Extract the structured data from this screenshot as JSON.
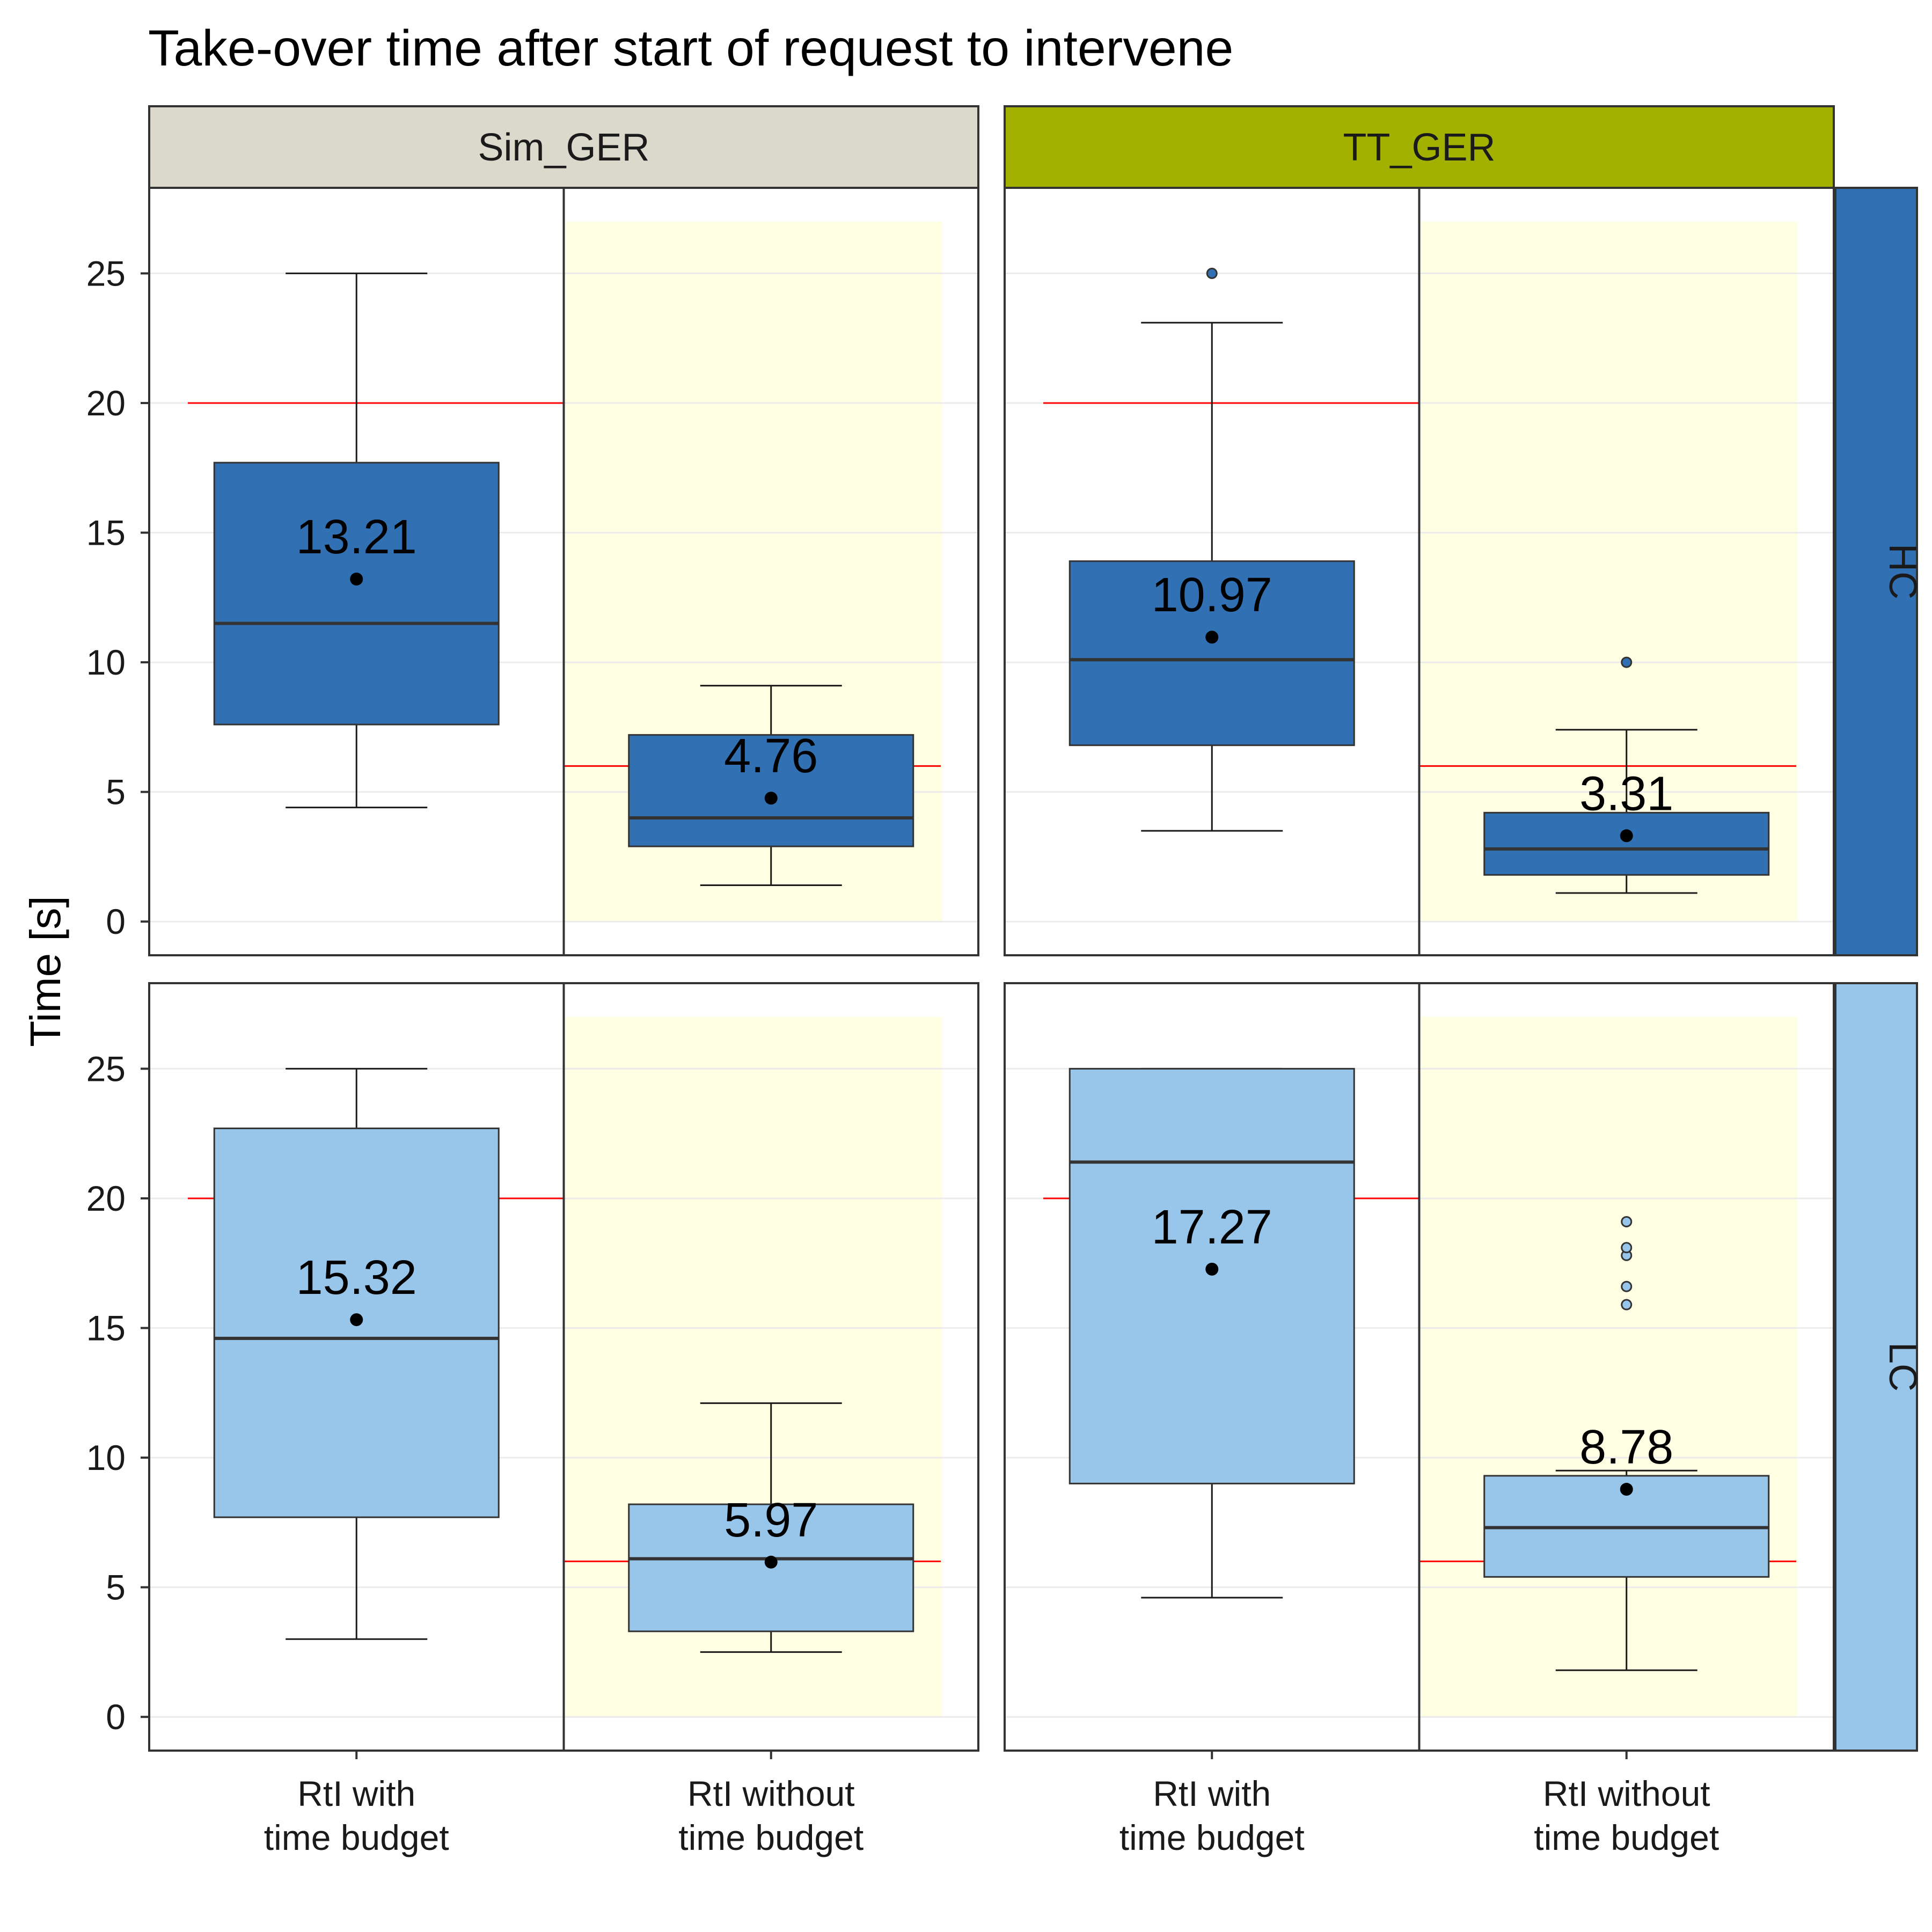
{
  "chart_data": {
    "type": "boxplot",
    "title": "Take-over time after start of request to intervene",
    "ylabel": "Time [s]",
    "xlabel": "",
    "ylim": [
      -1.3,
      28.3
    ],
    "yticks": [
      0,
      5,
      10,
      15,
      20,
      25
    ],
    "categories": [
      "RtI with\ntime budget",
      "RtI without\ntime budget"
    ],
    "columns": [
      {
        "label": "Sim_GER",
        "color": "#DAD9CC"
      },
      {
        "label": "TT_GER",
        "color": "#A2B000"
      }
    ],
    "rows": [
      {
        "label": "HC",
        "color": "#3070B3"
      },
      {
        "label": "LC",
        "color": "#98C5EA"
      }
    ],
    "highlight": {
      "category_index": 1,
      "color": "#FFFFE3",
      "ymin": 0,
      "ymax": 27
    },
    "reference_lines": {
      "color": "#FF0000",
      "values": [
        20,
        6
      ]
    },
    "grid": true,
    "panels": [
      {
        "column": "Sim_GER",
        "row": "HC",
        "boxes": [
          {
            "category": "RtI with time budget",
            "whisker_low": 4.4,
            "q1": 7.6,
            "median": 11.5,
            "q3": 17.7,
            "whisker_high": 25,
            "mean": 13.21,
            "mean_label": "13.21",
            "outliers": []
          },
          {
            "category": "RtI without time budget",
            "whisker_low": 1.4,
            "q1": 2.9,
            "median": 4.0,
            "q3": 7.2,
            "whisker_high": 9.1,
            "mean": 4.76,
            "mean_label": "4.76",
            "outliers": []
          }
        ]
      },
      {
        "column": "TT_GER",
        "row": "HC",
        "boxes": [
          {
            "category": "RtI with time budget",
            "whisker_low": 3.5,
            "q1": 6.8,
            "median": 10.1,
            "q3": 13.9,
            "whisker_high": 23.1,
            "mean": 10.97,
            "mean_label": "10.97",
            "outliers": [
              25.0
            ]
          },
          {
            "category": "RtI without time budget",
            "whisker_low": 1.1,
            "q1": 1.8,
            "median": 2.8,
            "q3": 4.2,
            "whisker_high": 7.4,
            "mean": 3.31,
            "mean_label": "3.31",
            "outliers": [
              10.0
            ]
          }
        ]
      },
      {
        "column": "Sim_GER",
        "row": "LC",
        "boxes": [
          {
            "category": "RtI with time budget",
            "whisker_low": 3.0,
            "q1": 7.7,
            "median": 14.6,
            "q3": 22.7,
            "whisker_high": 25,
            "mean": 15.32,
            "mean_label": "15.32",
            "outliers": []
          },
          {
            "category": "RtI without time budget",
            "whisker_low": 2.5,
            "q1": 3.3,
            "median": 6.1,
            "q3": 8.2,
            "whisker_high": 12.1,
            "mean": 5.97,
            "mean_label": "5.97",
            "outliers": []
          }
        ]
      },
      {
        "column": "TT_GER",
        "row": "LC",
        "boxes": [
          {
            "category": "RtI with time budget",
            "whisker_low": 4.6,
            "q1": 9.0,
            "median": 21.4,
            "q3": 25.0,
            "whisker_high": 25.0,
            "mean": 17.27,
            "mean_label": "17.27",
            "outliers": []
          },
          {
            "category": "RtI without time budget",
            "whisker_low": 1.8,
            "q1": 5.4,
            "median": 7.3,
            "q3": 9.3,
            "whisker_high": 9.5,
            "mean": 8.78,
            "mean_label": "8.78",
            "outliers": [
              15.9,
              16.6,
              17.8,
              18.1,
              19.1
            ]
          }
        ]
      }
    ]
  }
}
